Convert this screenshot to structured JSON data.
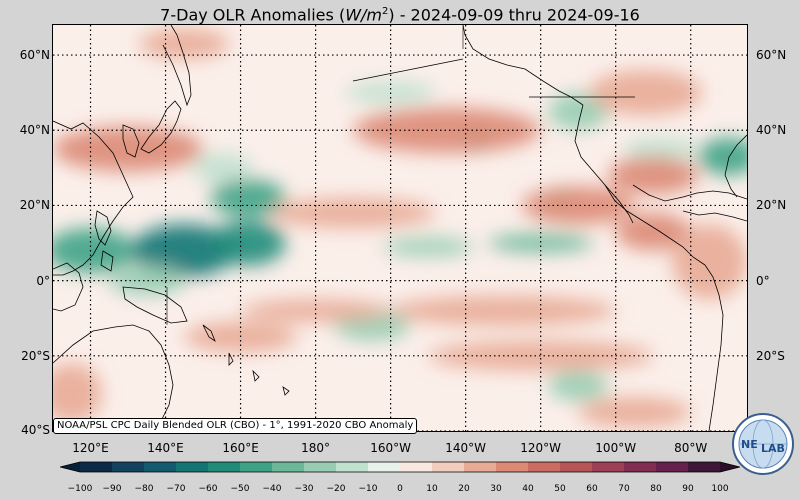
{
  "title": {
    "prefix": "7-Day OLR Anomalies (",
    "unit_base": "W/m",
    "unit_exp": "2",
    "suffix": ") - 2024-09-09 thru 2024-09-16"
  },
  "lat_labels": [
    "60°N",
    "40°N",
    "20°N",
    "0°",
    "20°S",
    "40°S"
  ],
  "lat_values": [
    60,
    40,
    20,
    0,
    -20,
    -40
  ],
  "lon_labels": [
    "120°E",
    "140°E",
    "160°E",
    "180°",
    "160°W",
    "140°W",
    "120°W",
    "100°W",
    "80°W"
  ],
  "lon_values": [
    120,
    140,
    160,
    180,
    200,
    220,
    240,
    260,
    280
  ],
  "map_extent": {
    "lon_min": 110,
    "lon_max": 295,
    "lat_min": -40,
    "lat_max": 68
  },
  "source_text": "NOAA/PSL CPC Daily Blended OLR (CBO) - 1°, 1991-2020 CBO Anomaly",
  "logo_text": {
    "left": "NE",
    "right": "LAB"
  },
  "colorbar": {
    "labels": [
      "−100",
      "−90",
      "−80",
      "−70",
      "−60",
      "−50",
      "−40",
      "−30",
      "−20",
      "−10",
      "0",
      "10",
      "20",
      "30",
      "40",
      "50",
      "60",
      "70",
      "80",
      "90",
      "100"
    ],
    "min": -100,
    "max": 100,
    "colors_negative": [
      "#0a2a45",
      "#10425e",
      "#125b6f",
      "#137573",
      "#1f8c7a",
      "#3ea386",
      "#6bb899",
      "#97cdb2",
      "#c1e1cf",
      "#e6f2ea"
    ],
    "colors_positive": [
      "#f8e8e0",
      "#f2cdbd",
      "#e8ab96",
      "#dc8a76",
      "#cc6b62",
      "#b65457",
      "#9d3f55",
      "#822d52",
      "#65204c",
      "#3e1638"
    ]
  },
  "anomaly_blobs": [
    {
      "lon": 120,
      "lat": 8,
      "rx": 12,
      "ry": 6,
      "value": -50
    },
    {
      "lon": 145,
      "lat": 8,
      "rx": 14,
      "ry": 7,
      "value": -65
    },
    {
      "lon": 162,
      "lat": 10,
      "rx": 10,
      "ry": 6,
      "value": -55
    },
    {
      "lon": 162,
      "lat": 22,
      "rx": 10,
      "ry": 5,
      "value": -45
    },
    {
      "lon": 135,
      "lat": 0,
      "rx": 10,
      "ry": 4,
      "value": -25
    },
    {
      "lon": 155,
      "lat": 30,
      "rx": 8,
      "ry": 4,
      "value": -20
    },
    {
      "lon": 210,
      "lat": 9,
      "rx": 12,
      "ry": 2.5,
      "value": -30
    },
    {
      "lon": 240,
      "lat": 10,
      "rx": 14,
      "ry": 2.5,
      "value": -35
    },
    {
      "lon": 223,
      "lat": 37,
      "rx": 3,
      "ry": 3,
      "value": -35
    },
    {
      "lon": 250,
      "lat": 45,
      "rx": 8,
      "ry": 5,
      "value": -25
    },
    {
      "lon": 290,
      "lat": 33,
      "rx": 8,
      "ry": 5,
      "value": -45
    },
    {
      "lon": 272,
      "lat": 35,
      "rx": 10,
      "ry": 3,
      "value": -20
    },
    {
      "lon": 200,
      "lat": 50,
      "rx": 12,
      "ry": 3,
      "value": -15
    },
    {
      "lon": 195,
      "lat": -12,
      "rx": 10,
      "ry": 4,
      "value": -25
    },
    {
      "lon": 250,
      "lat": -28,
      "rx": 8,
      "ry": 4,
      "value": -25
    },
    {
      "lon": 245,
      "lat": 22,
      "rx": 4,
      "ry": 3,
      "value": -25
    },
    {
      "lon": 215,
      "lat": 40,
      "rx": 25,
      "ry": 6,
      "value": 30
    },
    {
      "lon": 130,
      "lat": 35,
      "rx": 20,
      "ry": 6,
      "value": 30
    },
    {
      "lon": 190,
      "lat": 18,
      "rx": 22,
      "ry": 4,
      "value": 25
    },
    {
      "lon": 250,
      "lat": 20,
      "rx": 15,
      "ry": 5,
      "value": 30
    },
    {
      "lon": 270,
      "lat": 13,
      "rx": 10,
      "ry": 5,
      "value": 35
    },
    {
      "lon": 270,
      "lat": 28,
      "rx": 12,
      "ry": 5,
      "value": 30
    },
    {
      "lon": 268,
      "lat": 50,
      "rx": 15,
      "ry": 6,
      "value": 25
    },
    {
      "lon": 285,
      "lat": 5,
      "rx": 10,
      "ry": 10,
      "value": 25
    },
    {
      "lon": 180,
      "lat": -8,
      "rx": 20,
      "ry": 3,
      "value": 20
    },
    {
      "lon": 230,
      "lat": -8,
      "rx": 30,
      "ry": 4,
      "value": 25
    },
    {
      "lon": 160,
      "lat": -15,
      "rx": 15,
      "ry": 4,
      "value": 20
    },
    {
      "lon": 240,
      "lat": -20,
      "rx": 30,
      "ry": 4,
      "value": 20
    },
    {
      "lon": 265,
      "lat": -35,
      "rx": 15,
      "ry": 4,
      "value": 25
    },
    {
      "lon": 145,
      "lat": 63,
      "rx": 12,
      "ry": 4,
      "value": 20
    },
    {
      "lon": 115,
      "lat": -30,
      "rx": 8,
      "ry": 8,
      "value": 20
    }
  ]
}
